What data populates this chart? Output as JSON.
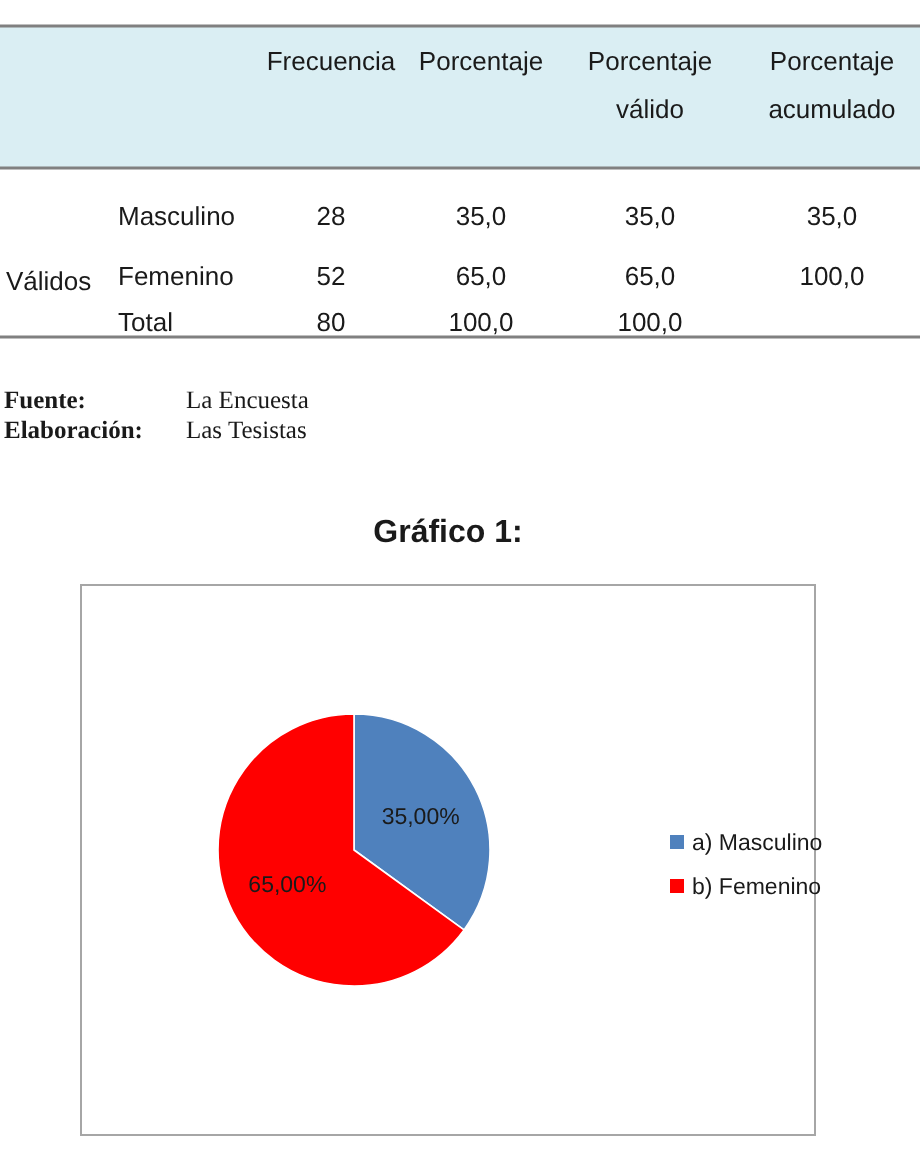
{
  "chart_data": [
    {
      "type": "other",
      "categories": [
        "Frecuencia",
        "Porcentaje",
        "Porcentaje válido",
        "Porcentaje acumulado"
      ],
      "y_categories": [
        "Masculino",
        "Femenino",
        "Total"
      ],
      "ylabel": "Válidos",
      "cell_labels": [
        [
          "28",
          "35,0",
          "35,0",
          "35,0"
        ],
        [
          "52",
          "65,0",
          "65,0",
          "100,0"
        ],
        [
          "80",
          "100,0",
          "100,0",
          null
        ]
      ],
      "annotations": [
        "Fuente: La Encuesta",
        "Elaboración: Las Tesistas"
      ]
    },
    {
      "type": "pie",
      "title": "Gráfico 1:",
      "categories": [
        "a) Masculino",
        "b) Femenino"
      ],
      "values": [
        35,
        65
      ],
      "colors": [
        "#4f81bd",
        "#ff0000"
      ],
      "value_labels": [
        "35,00%",
        "65,00%"
      ],
      "legend": "right"
    }
  ]
}
